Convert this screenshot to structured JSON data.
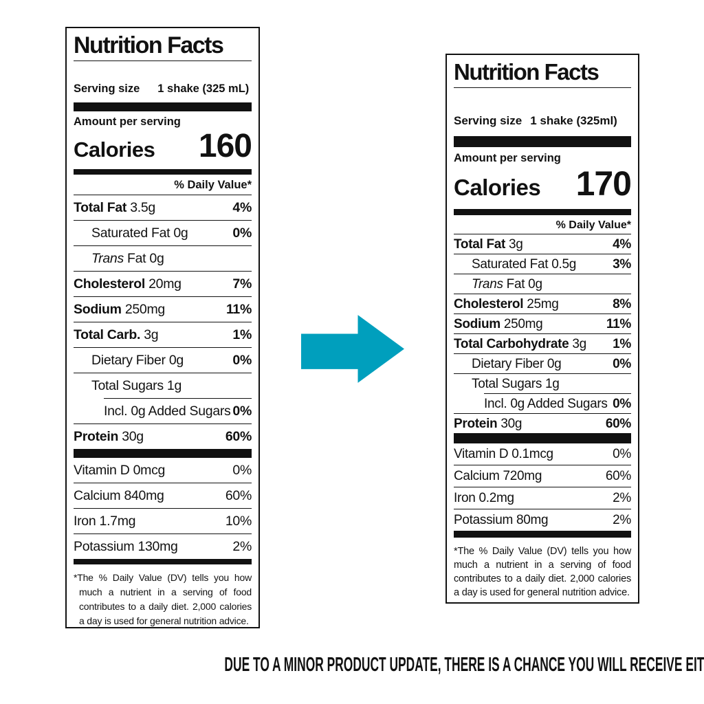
{
  "colors": {
    "arrow": "#009fbd",
    "ink": "#111111"
  },
  "caption": "DUE TO A MINOR PRODUCT UPDATE, THERE IS A CHANCE YOU WILL RECEIVE EITHER OF THESE TWO PRODUCTS.",
  "labels": [
    {
      "title": "Nutrition Facts",
      "serving_label": "Serving size",
      "serving_value": "1 shake (325 mL)",
      "amount_per_serving": "Amount per serving",
      "calories_label": "Calories",
      "calories_value": "160",
      "daily_value_header": "% Daily Value*",
      "rows": [
        {
          "bold": "Total Fat",
          "rest": " 3.5g",
          "pct": "4%",
          "pctBold": true,
          "indent": 0
        },
        {
          "rest": "Saturated Fat 0g",
          "pct": "0%",
          "pctBold": true,
          "indent": 1
        },
        {
          "italic": "Trans",
          "rest": " Fat 0g",
          "pct": "",
          "pctBold": false,
          "indent": 1
        },
        {
          "bold": "Cholesterol",
          "rest": " 20mg",
          "pct": "7%",
          "pctBold": true,
          "indent": 0
        },
        {
          "bold": "Sodium",
          "rest": " 250mg",
          "pct": "11%",
          "pctBold": true,
          "indent": 0
        },
        {
          "bold": "Total Carb.",
          "rest": " 3g",
          "pct": "1%",
          "pctBold": true,
          "indent": 0
        },
        {
          "rest": "Dietary Fiber 0g",
          "pct": "0%",
          "pctBold": true,
          "indent": 1
        },
        {
          "rest": "Total Sugars 1g",
          "pct": "",
          "pctBold": false,
          "indent": 1
        },
        {
          "rest": "Incl. 0g Added Sugars",
          "pct": "0%",
          "pctBold": true,
          "indent": 2,
          "ruleIndent": true
        },
        {
          "bold": "Protein",
          "rest": " 30g",
          "pct": "60%",
          "pctBold": true,
          "indent": 0
        }
      ],
      "vitamins": [
        {
          "rest": "Vitamin D 0mcg",
          "pct": "0%",
          "pctBold": false,
          "indent": 0
        },
        {
          "rest": "Calcium 840mg",
          "pct": "60%",
          "pctBold": false,
          "indent": 0
        },
        {
          "rest": "Iron 1.7mg",
          "pct": "10%",
          "pctBold": false,
          "indent": 0
        },
        {
          "rest": "Potassium 130mg",
          "pct": "2%",
          "pctBold": false,
          "indent": 0
        }
      ],
      "footnote": "*The % Daily Value (DV) tells you how much a nutrient in a serving of food contributes to a daily diet. 2,000 calories a day is used for general nutrition advice."
    },
    {
      "title": "Nutrition Facts",
      "serving_label": "Serving size",
      "serving_value": "1 shake (325ml)",
      "amount_per_serving": "Amount per serving",
      "calories_label": "Calories",
      "calories_value": "170",
      "daily_value_header": "% Daily Value*",
      "rows": [
        {
          "bold": "Total Fat",
          "rest": " 3g",
          "pct": "4%",
          "pctBold": true,
          "indent": 0
        },
        {
          "rest": "Saturated Fat 0.5g",
          "pct": "3%",
          "pctBold": true,
          "indent": 1
        },
        {
          "italic": "Trans",
          "rest": " Fat 0g",
          "pct": "",
          "pctBold": false,
          "indent": 1
        },
        {
          "bold": "Cholesterol",
          "rest": " 25mg",
          "pct": "8%",
          "pctBold": true,
          "indent": 0
        },
        {
          "bold": "Sodium",
          "rest": " 250mg",
          "pct": "11%",
          "pctBold": true,
          "indent": 0
        },
        {
          "bold": "Total Carbohydrate",
          "rest": " 3g",
          "pct": "1%",
          "pctBold": true,
          "indent": 0
        },
        {
          "rest": "Dietary Fiber 0g",
          "pct": "0%",
          "pctBold": true,
          "indent": 1
        },
        {
          "rest": "Total Sugars 1g",
          "pct": "",
          "pctBold": false,
          "indent": 1
        },
        {
          "rest": "Incl. 0g Added Sugars",
          "pct": "0%",
          "pctBold": true,
          "indent": 2,
          "ruleIndent": true
        },
        {
          "bold": "Protein",
          "rest": " 30g",
          "pct": "60%",
          "pctBold": true,
          "indent": 0
        }
      ],
      "vitamins": [
        {
          "rest": "Vitamin D 0.1mcg",
          "pct": "0%",
          "pctBold": false,
          "indent": 0
        },
        {
          "rest": "Calcium 720mg",
          "pct": "60%",
          "pctBold": false,
          "indent": 0
        },
        {
          "rest": "Iron 0.2mg",
          "pct": "2%",
          "pctBold": false,
          "indent": 0
        },
        {
          "rest": "Potassium 80mg",
          "pct": "2%",
          "pctBold": false,
          "indent": 0
        }
      ],
      "footnote": "*The % Daily Value (DV) tells you how much a nutrient in a serving of food contributes to a daily diet. 2,000 calories a day is used for general nutrition advice."
    }
  ]
}
